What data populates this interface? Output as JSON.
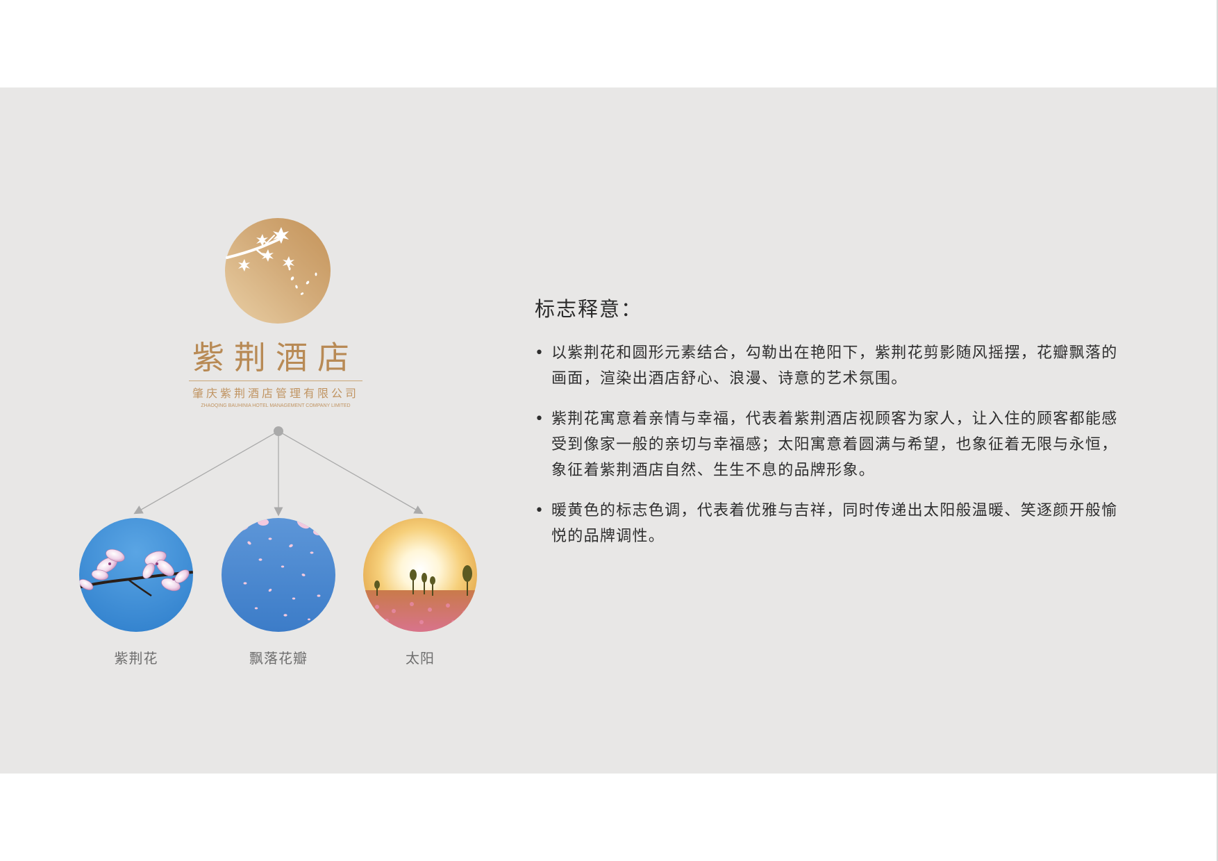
{
  "logo": {
    "brand_name": "紫荆酒店",
    "company_cn": "肇庆紫荆酒店管理有限公司",
    "company_en": "ZHAOQING BAUHINIA HOTEL MANAGEMENT COMPANY LIMITED"
  },
  "elements": [
    {
      "label": "紫荆花",
      "icon": "bauhinia-flower-photo"
    },
    {
      "label": "飘落花瓣",
      "icon": "falling-petals-photo"
    },
    {
      "label": "太阳",
      "icon": "sun-photo"
    }
  ],
  "description": {
    "title": "标志释意：",
    "bullet": "•",
    "items": [
      "以紫荆花和圆形元素结合，勾勒出在艳阳下，紫荆花剪影随风摇摆，花瓣飘落的画面，渲染出酒店舒心、浪漫、诗意的艺术氛围。",
      "紫荆花寓意着亲情与幸福，代表着紫荆酒店视顾客为家人，让入住的顾客都能感受到像家一般的亲切与幸福感；太阳寓意着圆满与希望，也象征着无限与永恒，象征着紫荆酒店自然、生生不息的品牌形象。",
      "暖黄色的标志色调，代表着优雅与吉祥，同时传递出太阳般温暖、笑逐颜开般愉悦的品牌调性。"
    ]
  },
  "colors": {
    "band_background": "#e8e7e6",
    "brand_gold": "#b88a55",
    "connector_gray": "#aaaaaa",
    "sky_blue": "#3f8fd6"
  }
}
